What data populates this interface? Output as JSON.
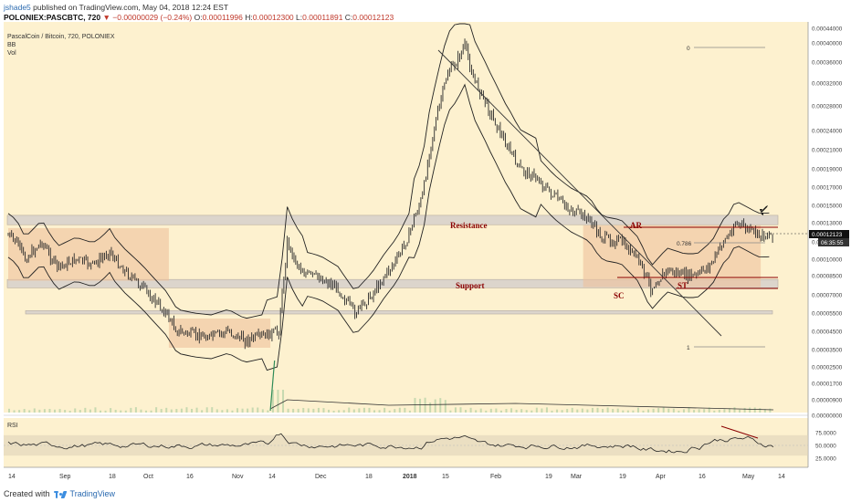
{
  "header": {
    "user": "jshade5",
    "published": " published on TradingView.com, May 04, 2018 12:24 EST",
    "symbol": "POLONIEX:PASCBTC, 720",
    "change": "▼ −0.00000029 (−0.24%)",
    "open_label": "O:",
    "open": "0.00011996",
    "high_label": "H:",
    "high": "0.00012300",
    "low_label": "L:",
    "low": "0.00011891",
    "close_label": "C:",
    "close": "0.00012123"
  },
  "legend": {
    "title": "PascalCoin / Bitcoin, 720, POLONIEX",
    "bb": "BB",
    "vol": "Vol"
  },
  "footer": {
    "created": "Created with",
    "brand": "TradingView"
  },
  "colors": {
    "background": "#fdf1cf",
    "candle": "#2b2b2b",
    "zone": "#dcd5cc",
    "box": "#efc19b",
    "annotation": "#8b0000"
  },
  "chart_data": {
    "type": "candlestick",
    "pair": "PASCBTC",
    "interval": "720",
    "y_axis_ticks": [
      "0.00044000",
      "0.00040000",
      "0.00036000",
      "0.00032000",
      "0.00028000",
      "0.00024000",
      "0.00021000",
      "0.00019000",
      "0.00017000",
      "0.00015000",
      "0.00013000",
      "0.00012123",
      "0.00011000",
      "0.00010000",
      "0.00008500",
      "0.00007000",
      "0.00005500",
      "0.00004500",
      "0.00003500",
      "0.00002500",
      "0.00001700",
      "0.00000900",
      "0.00000000"
    ],
    "last_price": "0.00012123",
    "countdown": "06:35:55",
    "x_axis_ticks": [
      "14",
      "Sep",
      "18",
      "Oct",
      "16",
      "Nov",
      "14",
      "Dec",
      "18",
      "2018",
      "15",
      "Feb",
      "19",
      "Mar",
      "19",
      "Apr",
      "16",
      "May",
      "14"
    ],
    "price_path": [
      [
        0,
        0.00012
      ],
      [
        4,
        0.0001
      ],
      [
        8,
        0.00011
      ],
      [
        12,
        9.25e-05
      ],
      [
        16,
        0.0001
      ],
      [
        20,
        9.5e-05
      ],
      [
        24,
        0.000105
      ],
      [
        28,
        8.75e-05
      ],
      [
        32,
        7.5e-05
      ],
      [
        36,
        6e-05
      ],
      [
        40,
        4.5e-05
      ],
      [
        44,
        4.3e-05
      ],
      [
        48,
        4.2e-05
      ],
      [
        52,
        4.5e-05
      ],
      [
        56,
        4e-05
      ],
      [
        60,
        4.2e-05
      ],
      [
        64,
        4.5e-05
      ],
      [
        66,
        0.00011
      ],
      [
        70,
        8.7e-05
      ],
      [
        74,
        8.3e-05
      ],
      [
        78,
        7.5e-05
      ],
      [
        82,
        5.5e-05
      ],
      [
        86,
        7e-05
      ],
      [
        90,
        9e-05
      ],
      [
        94,
        0.00011
      ],
      [
        98,
        0.00016
      ],
      [
        101,
        0.00025
      ],
      [
        104,
        0.00034
      ],
      [
        106,
        0.00036
      ],
      [
        108,
        0.000395
      ],
      [
        110,
        0.00033
      ],
      [
        114,
        0.00027
      ],
      [
        118,
        0.000215
      ],
      [
        121,
        0.00019
      ],
      [
        125,
        0.00018
      ],
      [
        129,
        0.00016
      ],
      [
        133,
        0.000145
      ],
      [
        137,
        0.000135
      ],
      [
        141,
        0.000115
      ],
      [
        145,
        0.00011
      ],
      [
        149,
        0.0001
      ],
      [
        152,
        7.5e-05
      ],
      [
        156,
        9e-05
      ],
      [
        160,
        8.5e-05
      ],
      [
        163,
        8.5e-05
      ],
      [
        166,
        9.5e-05
      ],
      [
        169,
        0.00011
      ],
      [
        172,
        0.00013
      ],
      [
        175,
        0.000125
      ],
      [
        178,
        0.00012
      ],
      [
        181,
        0.00012123
      ]
    ],
    "resistance_zone": [
      0.0001285,
      0.0001385
    ],
    "support_zone": [
      7.55e-05,
      8.2e-05
    ],
    "lower_zone": [
      5.45e-05,
      5.7e-05
    ],
    "annotations": [
      "Resistance",
      "Support",
      "AR",
      "SC",
      "ST",
      "0.786",
      "0",
      "1"
    ],
    "rsi": {
      "label": "RSI",
      "ticks": [
        "75.0000",
        "50.0000",
        "25.0000"
      ],
      "band": [
        30,
        70
      ]
    }
  }
}
